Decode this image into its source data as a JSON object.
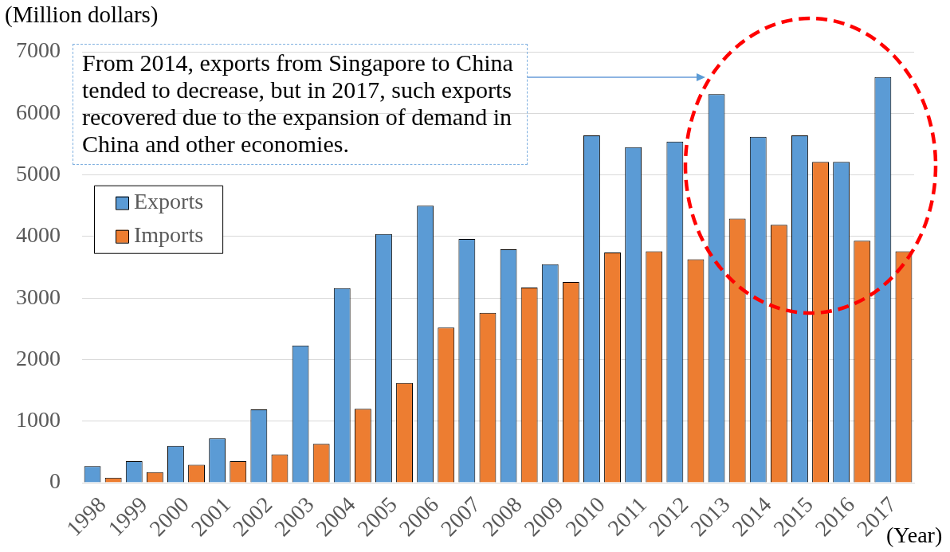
{
  "chart_data": {
    "type": "bar",
    "ylabel": "(Million dollars)",
    "xlabel": "(Year)",
    "categories": [
      "1998",
      "1999",
      "2000",
      "2001",
      "2002",
      "2003",
      "2004",
      "2005",
      "2006",
      "2007",
      "2008",
      "2009",
      "2010",
      "2011",
      "2012",
      "2013",
      "2014",
      "2015",
      "2016",
      "2017"
    ],
    "series": [
      {
        "name": "Exports",
        "color": "#5b9bd5",
        "values": [
          270,
          350,
          600,
          720,
          1190,
          2230,
          3160,
          4040,
          4500,
          3960,
          3790,
          3550,
          5640,
          5450,
          5540,
          6310,
          5620,
          5640,
          5210,
          6590
        ]
      },
      {
        "name": "Imports",
        "color": "#ed7d31",
        "values": [
          80,
          170,
          290,
          350,
          460,
          630,
          1200,
          1620,
          2520,
          2760,
          3170,
          3260,
          3740,
          3760,
          3630,
          4290,
          4190,
          5210,
          3930,
          3760
        ]
      }
    ],
    "ylim": [
      0,
      7000
    ],
    "yticks": [
      0,
      1000,
      2000,
      3000,
      4000,
      5000,
      6000,
      7000
    ],
    "grid": "y",
    "legend": "top left",
    "annotations": [
      "From 2014, exports from Singapore to China tended to decrease, but in 2017, such exports recovered due to the expansion of demand in China and other economies."
    ]
  }
}
